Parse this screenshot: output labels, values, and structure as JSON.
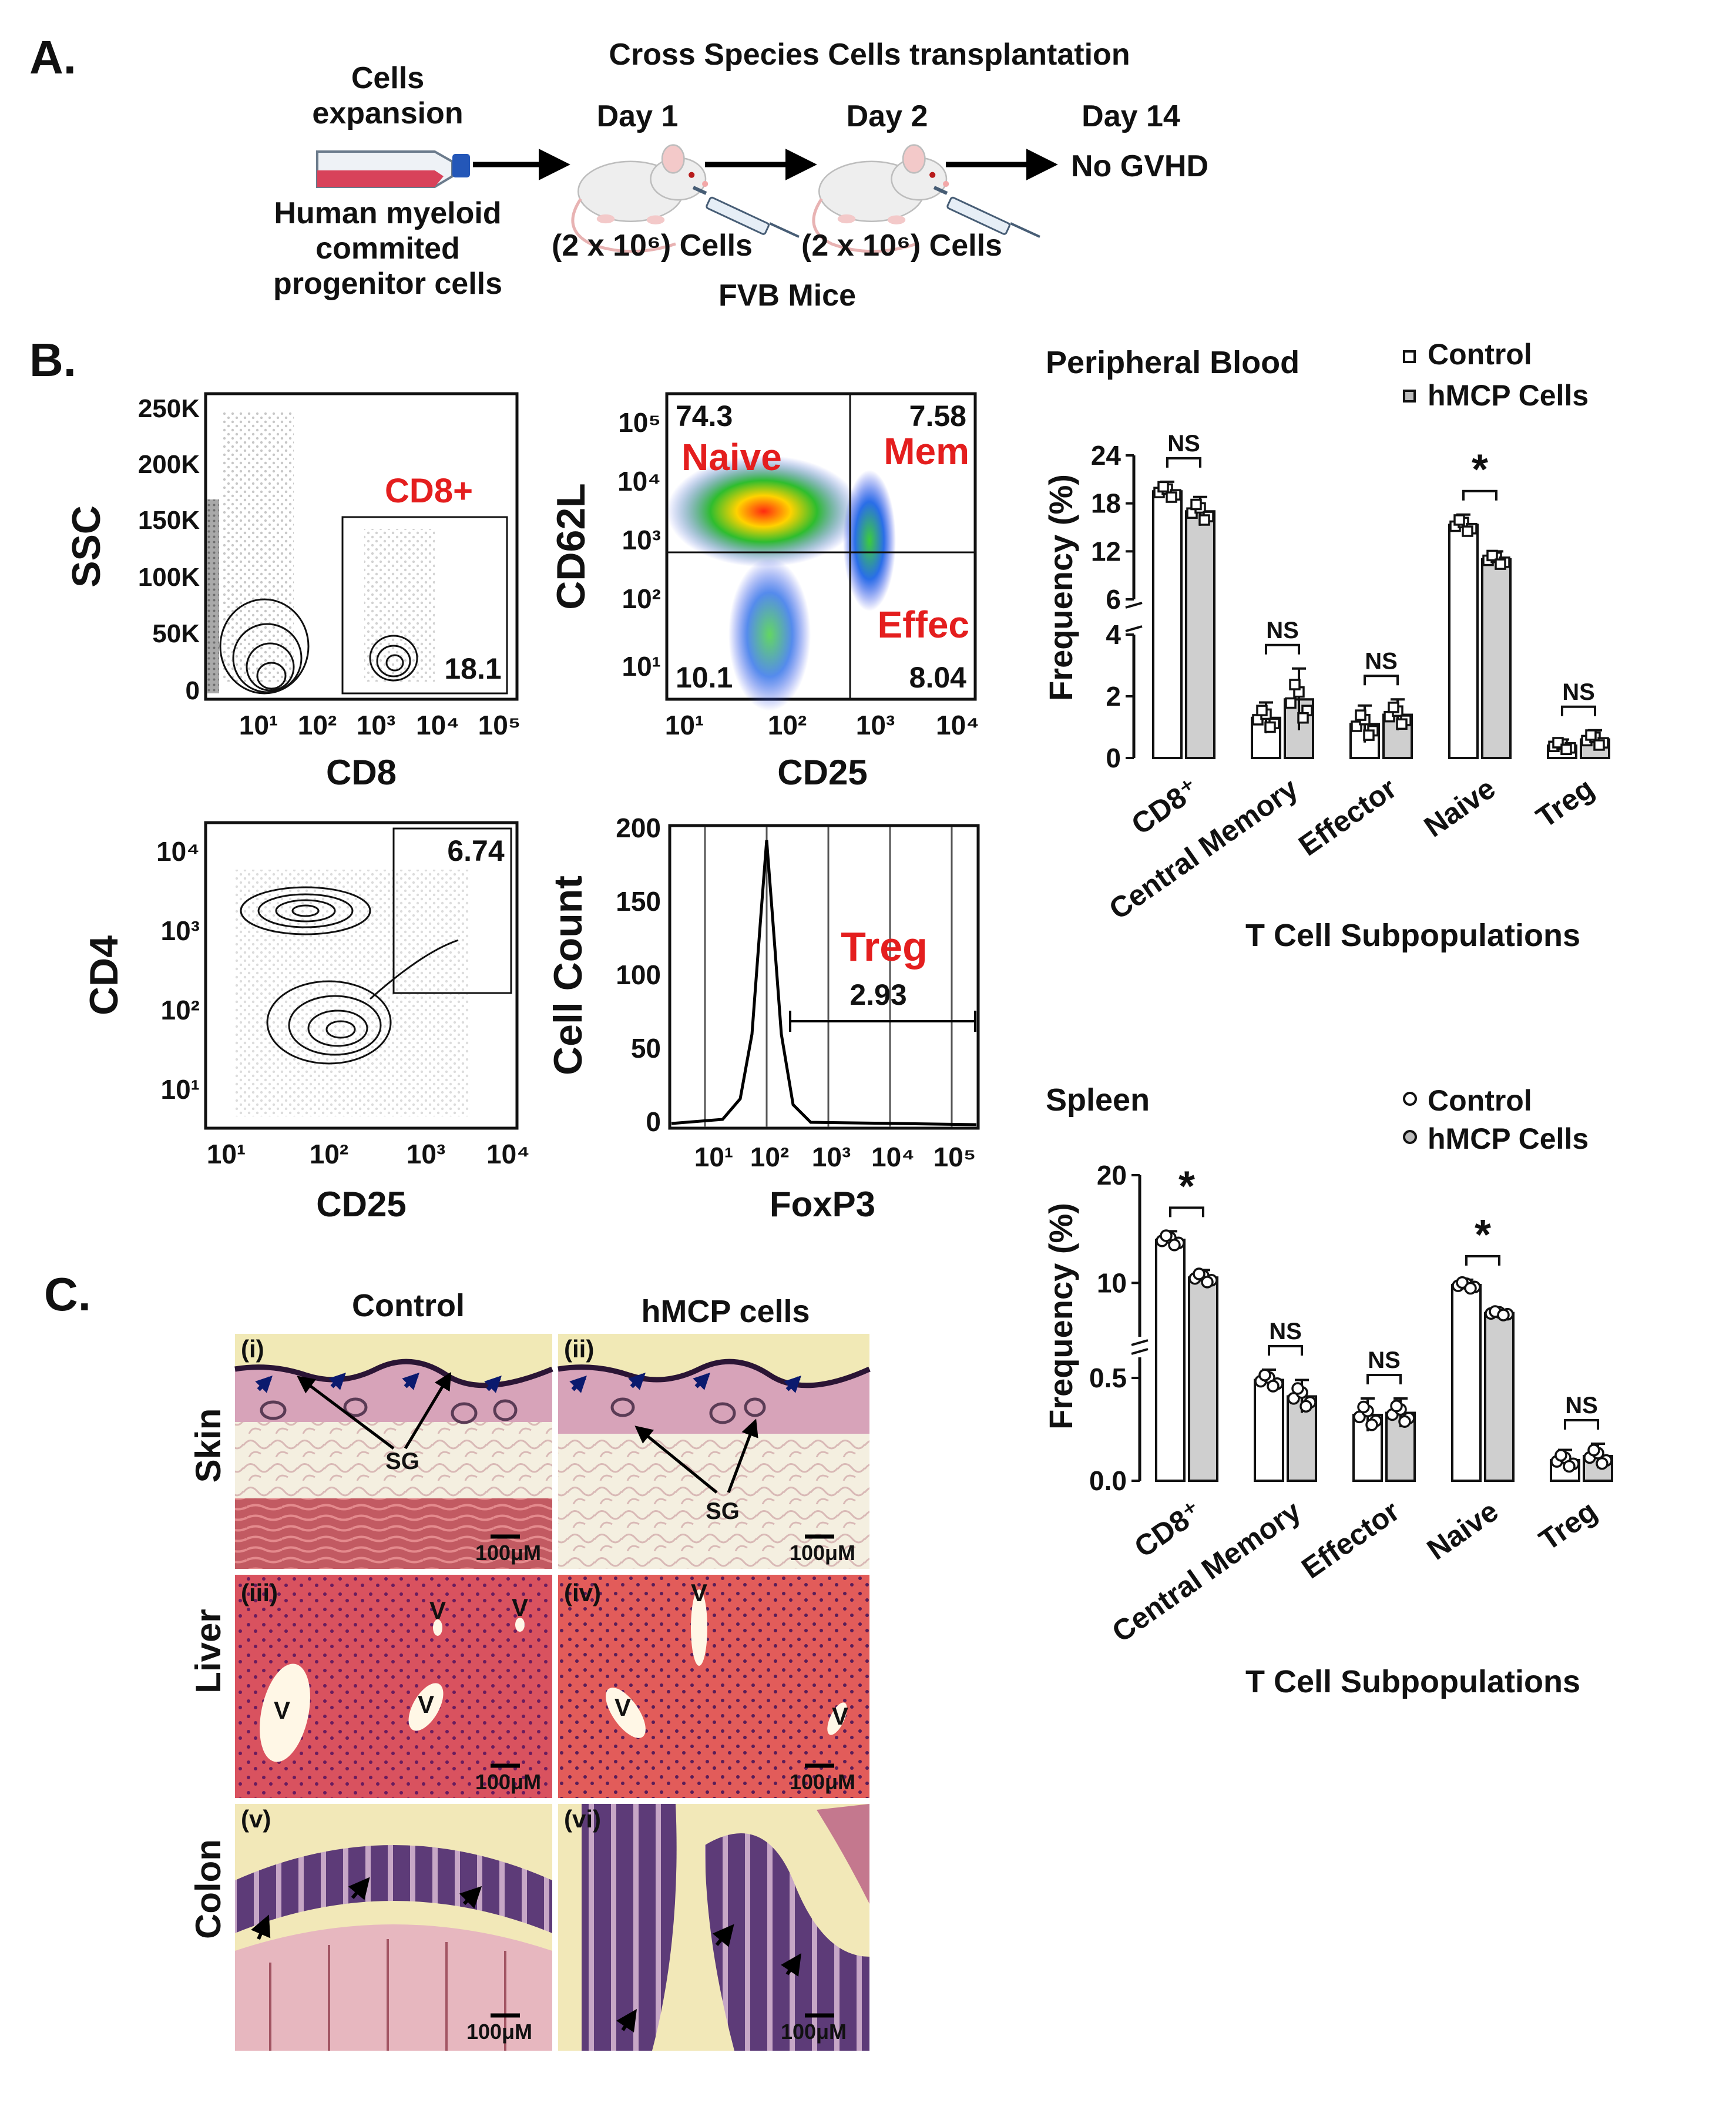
{
  "panel_labels": {
    "a": "A.",
    "b": "B.",
    "c": "C."
  },
  "panel_a": {
    "title": "Cross Species Cells transplantation",
    "expansion_line1": "Cells",
    "expansion_line2": "expansion",
    "cells_line1": "Human myeloid",
    "cells_line2": "commited",
    "cells_line3": "progenitor cells",
    "day1": "Day 1",
    "day2": "Day 2",
    "day14": "Day 14",
    "no_gvhd": "No GVHD",
    "dose1": "(2 x 10⁶) Cells",
    "dose2": "(2 x 10⁶) Cells",
    "mice": "FVB Mice"
  },
  "flow": {
    "p1": {
      "ylabel": "SSC",
      "xlabel": "CD8",
      "yticks": [
        "250K",
        "200K",
        "150K",
        "100K",
        "50K",
        "0"
      ],
      "xticks": [
        "10¹",
        "10²",
        "10³",
        "10⁴",
        "10⁵"
      ],
      "gate_label": "CD8+",
      "gate_value": "18.1"
    },
    "p2": {
      "ylabel": "CD62L",
      "xlabel": "CD25",
      "yticks": [
        "10⁵",
        "10⁴",
        "10³",
        "10²",
        "10¹"
      ],
      "xticks": [
        "10¹",
        "10²",
        "10³",
        "10⁴"
      ],
      "q_tl": "74.3",
      "q_tr": "7.58",
      "q_bl": "10.1",
      "q_br": "8.04",
      "naive": "Naive",
      "mem": "Mem",
      "effec": "Effec"
    },
    "p3": {
      "ylabel": "CD4",
      "xlabel": "CD25",
      "yticks": [
        "10⁴",
        "10³",
        "10²",
        "10¹"
      ],
      "xticks": [
        "10¹",
        "10²",
        "10³",
        "10⁴"
      ],
      "gate_value": "6.74"
    },
    "p4": {
      "ylabel": "Cell Count",
      "xlabel": "FoxP3",
      "yticks": [
        "200",
        "150",
        "100",
        "50",
        "0"
      ],
      "xticks": [
        "10¹",
        "10²",
        "10³",
        "10⁴",
        "10⁵"
      ],
      "label": "Treg",
      "gate_value": "2.93"
    }
  },
  "chart_data": [
    {
      "type": "bar",
      "title": "Peripheral Blood",
      "xlabel": "T Cell Subpopulations",
      "ylabel": "Frequency (%)",
      "categories": [
        "CD8⁺",
        "Central Memory",
        "Effector",
        "Naive",
        "Treg"
      ],
      "series": [
        {
          "name": "Control",
          "values": [
            19.5,
            1.3,
            1.1,
            15.3,
            0.4
          ],
          "errors": [
            1.2,
            0.5,
            0.6,
            1.3,
            0.2
          ]
        },
        {
          "name": "hMCP Cells",
          "values": [
            17.0,
            1.9,
            1.4,
            11.0,
            0.6
          ],
          "errors": [
            1.8,
            1.0,
            0.5,
            1.0,
            0.3
          ]
        }
      ],
      "yticks": [
        "0",
        "2",
        "4",
        "6",
        "12",
        "18",
        "24"
      ],
      "y_axis_break": [
        4,
        6
      ],
      "significance": [
        "NS",
        "NS",
        "NS",
        "*",
        "NS"
      ]
    },
    {
      "type": "bar",
      "title": "Spleen",
      "xlabel": "T Cell Subpopulations",
      "ylabel": "Frequency (%)",
      "categories": [
        "CD8⁺",
        "Central Memory",
        "Effector",
        "Naive",
        "Treg"
      ],
      "series": [
        {
          "name": "Control",
          "values": [
            14.0,
            0.49,
            0.32,
            9.8,
            0.1
          ],
          "errors": [
            0.8,
            0.05,
            0.08,
            0.5,
            0.05
          ]
        },
        {
          "name": "hMCP Cells",
          "values": [
            10.5,
            0.41,
            0.33,
            7.2,
            0.12
          ],
          "errors": [
            0.7,
            0.08,
            0.07,
            0.3,
            0.06
          ]
        }
      ],
      "yticks": [
        "0.0",
        "0.5",
        "10",
        "20"
      ],
      "y_axis_break": [
        0.6,
        5
      ],
      "significance": [
        "*",
        "NS",
        "NS",
        "*",
        "NS"
      ]
    }
  ],
  "panel_c": {
    "col_control": "Control",
    "col_hmcp": "hMCP cells",
    "row_skin": "Skin",
    "row_liver": "Liver",
    "row_colon": "Colon",
    "roman": [
      "(i)",
      "(ii)",
      "(iii)",
      "(iv)",
      "(v)",
      "(vi)"
    ],
    "sg": "SG",
    "v": "V",
    "scale": "100μM"
  }
}
